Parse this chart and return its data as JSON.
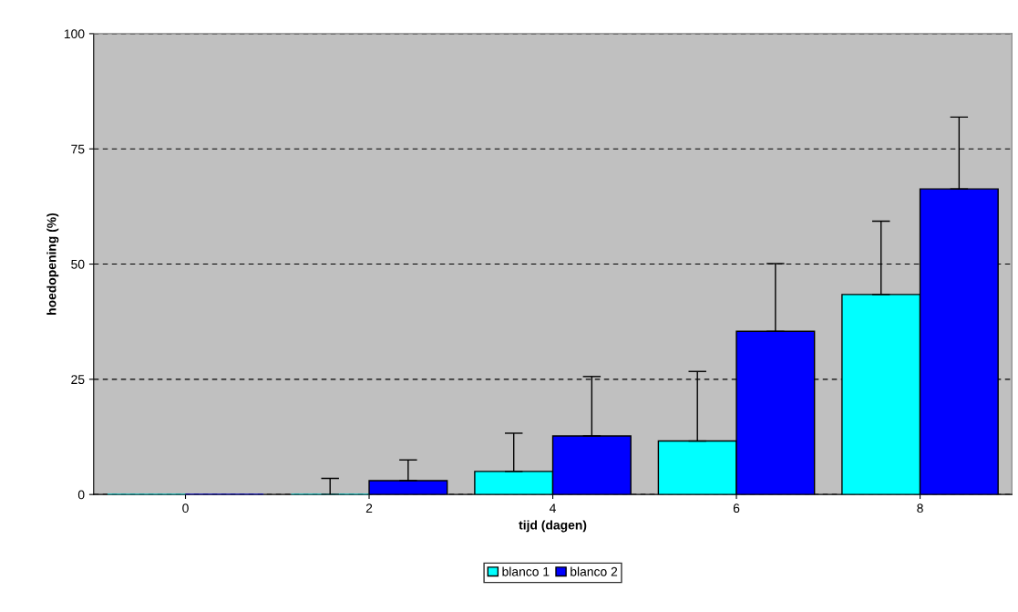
{
  "chart_data": {
    "type": "bar",
    "xlabel": "tijd (dagen)",
    "ylabel": "hoedopening (%)",
    "categories": [
      "0",
      "2",
      "4",
      "6",
      "8"
    ],
    "series": [
      {
        "name": "blanco 1",
        "color": "#00ffff",
        "values": [
          0,
          0,
          5.0,
          11.6,
          43.4
        ],
        "errors": [
          null,
          [
            0,
            3.5
          ],
          [
            5.0,
            13.3
          ],
          [
            11.6,
            26.7
          ],
          [
            43.4,
            59.3
          ]
        ]
      },
      {
        "name": "blanco 2",
        "color": "#0000ff",
        "values": [
          0,
          3.0,
          12.7,
          35.4,
          66.3
        ],
        "errors": [
          null,
          [
            3.0,
            7.5
          ],
          [
            12.7,
            25.6
          ],
          [
            35.4,
            50.1
          ],
          [
            66.3,
            81.9
          ]
        ]
      }
    ],
    "ylim": [
      0,
      100
    ],
    "yticks": [
      0,
      25,
      50,
      75,
      100
    ],
    "grid": "y",
    "legend": "bottom"
  }
}
